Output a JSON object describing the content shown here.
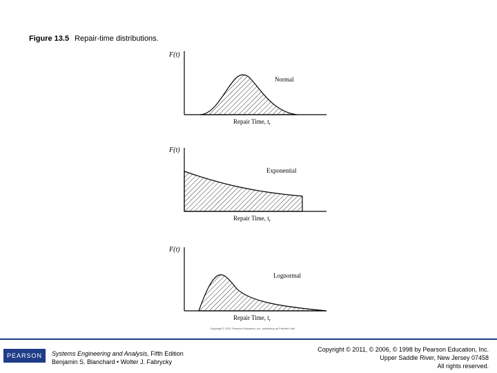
{
  "figure": {
    "number": "Figure 13.5",
    "caption": "Repair-time distributions."
  },
  "panels": [
    {
      "id": "normal",
      "y_label": "F(t)",
      "x_label": "Repair Time, t",
      "x_sub": "r",
      "dist_label": "Normal"
    },
    {
      "id": "exponential",
      "y_label": "F(t)",
      "x_label": "Repair Time, t",
      "x_sub": "r",
      "dist_label": "Exponential"
    },
    {
      "id": "lognormal",
      "y_label": "F(t)",
      "x_label": "Repair Time, t",
      "x_sub": "r",
      "dist_label": "Lognormal"
    }
  ],
  "credit": "Copyright © 2011 Pearson Education, Inc. publishing as Prentice Hall",
  "footer": {
    "logo_text": "PEARSON",
    "book_title": "Systems Engineering and Analysis,",
    "edition": " Fifth Edition",
    "authors": "Benjamin S. Blanchard • Wolter J. Fabrycky",
    "copyright_line1": "Copyright © 2011, © 2006, © 1998 by Pearson Education, Inc.",
    "copyright_line2": "Upper Saddle River, New Jersey 07458",
    "copyright_line3": "All rights reserved."
  },
  "colors": {
    "accent": "#1f3c88",
    "line": "#000000"
  }
}
